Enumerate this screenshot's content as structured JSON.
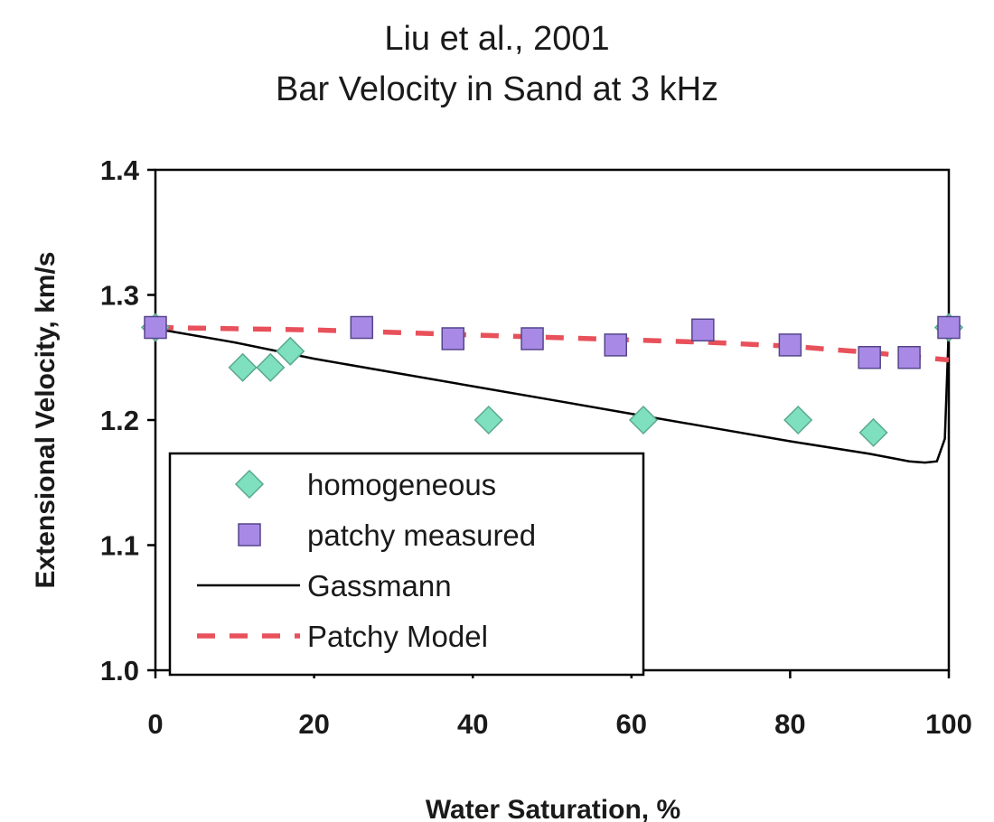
{
  "chart_data": {
    "type": "scatter",
    "title": "Liu et al., 2001",
    "subtitle": "Bar Velocity in Sand at 3 kHz",
    "xlabel": "Water Saturation, %",
    "ylabel": "Extensional Velocity, km/s",
    "xlim": [
      0,
      100
    ],
    "ylim": [
      1.0,
      1.4
    ],
    "x_ticks": [
      "0",
      "20",
      "40",
      "60",
      "80",
      "100"
    ],
    "y_ticks": [
      "1.0",
      "1.1",
      "1.2",
      "1.3",
      "1.4"
    ],
    "grid": false,
    "legend_position": "lower-left",
    "series": [
      {
        "name": "homogeneous",
        "kind": "marker",
        "marker": "diamond",
        "color": "#7fe0bf",
        "x": [
          0,
          11,
          14.5,
          17,
          42,
          61.5,
          81,
          90.5,
          100
        ],
        "y": [
          1.274,
          1.242,
          1.242,
          1.255,
          1.2,
          1.2,
          1.2,
          1.19,
          1.274
        ]
      },
      {
        "name": "patchy measured",
        "kind": "marker",
        "marker": "square",
        "color": "#a88ae6",
        "x": [
          0,
          26,
          37.5,
          47.5,
          58,
          69,
          80,
          90,
          95,
          100
        ],
        "y": [
          1.274,
          1.274,
          1.265,
          1.265,
          1.26,
          1.272,
          1.26,
          1.25,
          1.25,
          1.274
        ]
      },
      {
        "name": "Gassmann",
        "kind": "line",
        "style": "solid",
        "color": "#000000",
        "x": [
          0,
          10,
          20,
          30,
          40,
          50,
          60,
          70,
          80,
          90,
          95,
          97,
          98.5,
          99.5,
          100
        ],
        "y": [
          1.273,
          1.262,
          1.249,
          1.238,
          1.227,
          1.216,
          1.205,
          1.194,
          1.183,
          1.173,
          1.167,
          1.166,
          1.167,
          1.185,
          1.274
        ]
      },
      {
        "name": "Patchy Model",
        "kind": "line",
        "style": "dashed",
        "color": "#e8505a",
        "x": [
          0,
          10,
          20,
          30,
          40,
          50,
          60,
          70,
          80,
          90,
          100
        ],
        "y": [
          1.274,
          1.273,
          1.272,
          1.27,
          1.268,
          1.266,
          1.264,
          1.262,
          1.259,
          1.254,
          1.248
        ]
      }
    ]
  }
}
